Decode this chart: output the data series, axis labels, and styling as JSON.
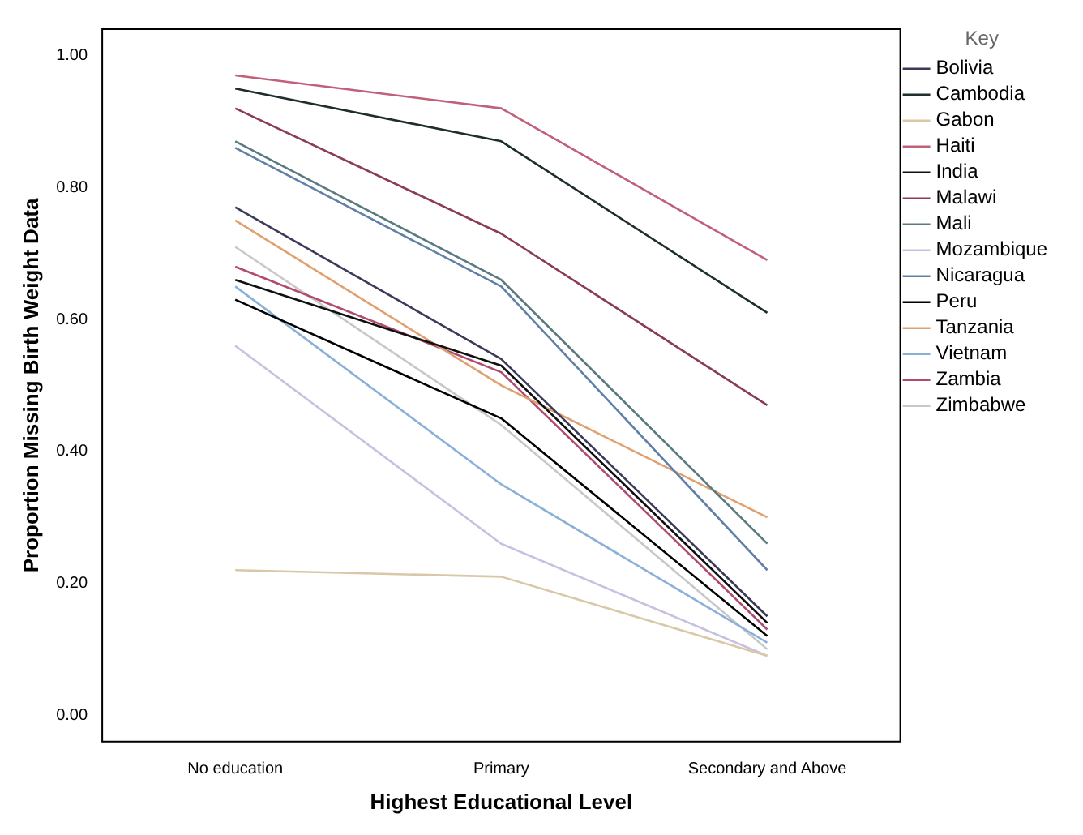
{
  "chart_data": {
    "type": "line",
    "xlabel": "Highest Educational Level",
    "ylabel": "Proportion Missing Birth Weight Data",
    "legend_title": "Key",
    "categories": [
      "No education",
      "Primary",
      "Secondary and Above"
    ],
    "series": [
      {
        "name": "Bolivia",
        "color": "#3a3a5a",
        "values": [
          0.77,
          0.54,
          0.15
        ]
      },
      {
        "name": "Cambodia",
        "color": "#1e2e2e",
        "values": [
          0.95,
          0.87,
          0.61
        ]
      },
      {
        "name": "Gabon",
        "color": "#d8c8a8",
        "values": [
          0.22,
          0.21,
          0.09
        ]
      },
      {
        "name": "Haiti",
        "color": "#c0607a",
        "values": [
          0.97,
          0.92,
          0.69
        ]
      },
      {
        "name": "India",
        "color": "#101010",
        "values": [
          0.66,
          0.53,
          0.14
        ]
      },
      {
        "name": "Malawi",
        "color": "#8a3a5a",
        "values": [
          0.92,
          0.73,
          0.47
        ]
      },
      {
        "name": "Mali",
        "color": "#5a7a80",
        "values": [
          0.87,
          0.66,
          0.26
        ]
      },
      {
        "name": "Mozambique",
        "color": "#c8c0e0",
        "values": [
          0.56,
          0.26,
          0.09
        ]
      },
      {
        "name": "Nicaragua",
        "color": "#6080a8",
        "values": [
          0.86,
          0.65,
          0.22
        ]
      },
      {
        "name": "Peru",
        "color": "#000000",
        "values": [
          0.63,
          0.45,
          0.12
        ]
      },
      {
        "name": "Tanzania",
        "color": "#e0a070",
        "values": [
          0.75,
          0.5,
          0.3
        ]
      },
      {
        "name": "Vietnam",
        "color": "#8ab0d8",
        "values": [
          0.65,
          0.35,
          0.11
        ]
      },
      {
        "name": "Zambia",
        "color": "#b04a70",
        "values": [
          0.68,
          0.52,
          0.13
        ]
      },
      {
        "name": "Zimbabwe",
        "color": "#c8c8c8",
        "values": [
          0.71,
          0.44,
          0.1
        ]
      }
    ],
    "ylim": [
      -0.04,
      1.04
    ],
    "yticks": [
      {
        "value": 0,
        "label": "0.00"
      },
      {
        "value": 0.2,
        "label": "0.20"
      },
      {
        "value": 0.4,
        "label": "0.40"
      },
      {
        "value": 0.6,
        "label": "0.60"
      },
      {
        "value": 0.8,
        "label": "0.80"
      },
      {
        "value": 1,
        "label": "1.00"
      }
    ],
    "grid": false,
    "legend": "right",
    "marker": "none",
    "line_style": "solid"
  }
}
